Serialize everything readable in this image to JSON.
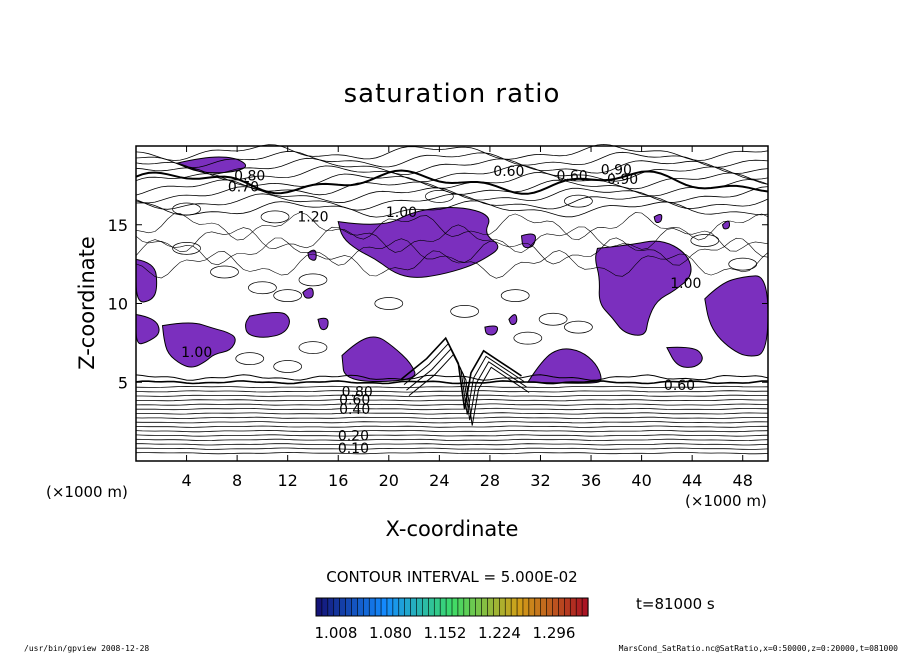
{
  "chart_data": {
    "type": "contour",
    "title": "saturation ratio",
    "xlabel": "X-coordinate",
    "ylabel": "Z-coordinate",
    "x_unit": "(×1000 m)",
    "z_unit": "(×1000 m)",
    "xlim": [
      0,
      50
    ],
    "ylim": [
      0,
      20
    ],
    "xticks": [
      4,
      8,
      12,
      16,
      20,
      24,
      28,
      32,
      36,
      40,
      44,
      48
    ],
    "yticks": [
      5,
      10,
      15
    ],
    "contour_interval": "CONTOUR INTERVAL = 5.000E-02",
    "contour_labels": [
      "0.10",
      "0.20",
      "0.40",
      "0.60",
      "0.80",
      "1.00",
      "0.60",
      "0.60",
      "0.60",
      "0.80",
      "0.70",
      "0.90",
      "1.00",
      "1.20",
      "1.00",
      "0.90"
    ],
    "colorbar": {
      "tick_labels": [
        "1.008",
        "1.080",
        "1.152",
        "1.224",
        "1.296"
      ],
      "range": [
        1.008,
        1.296
      ]
    },
    "time_label": "t=81000 s",
    "grid": false,
    "shaded_regions_color": "#7b2fbe"
  },
  "footer": {
    "left": "/usr/bin/gpview  2008-12-28",
    "right": "MarsCond_SatRatio.nc@SatRatio,x=0:50000,z=0:20000,t=081000"
  },
  "colors": {
    "supersaturation_fill": "#7b2fbe",
    "contour_line": "#000000"
  }
}
